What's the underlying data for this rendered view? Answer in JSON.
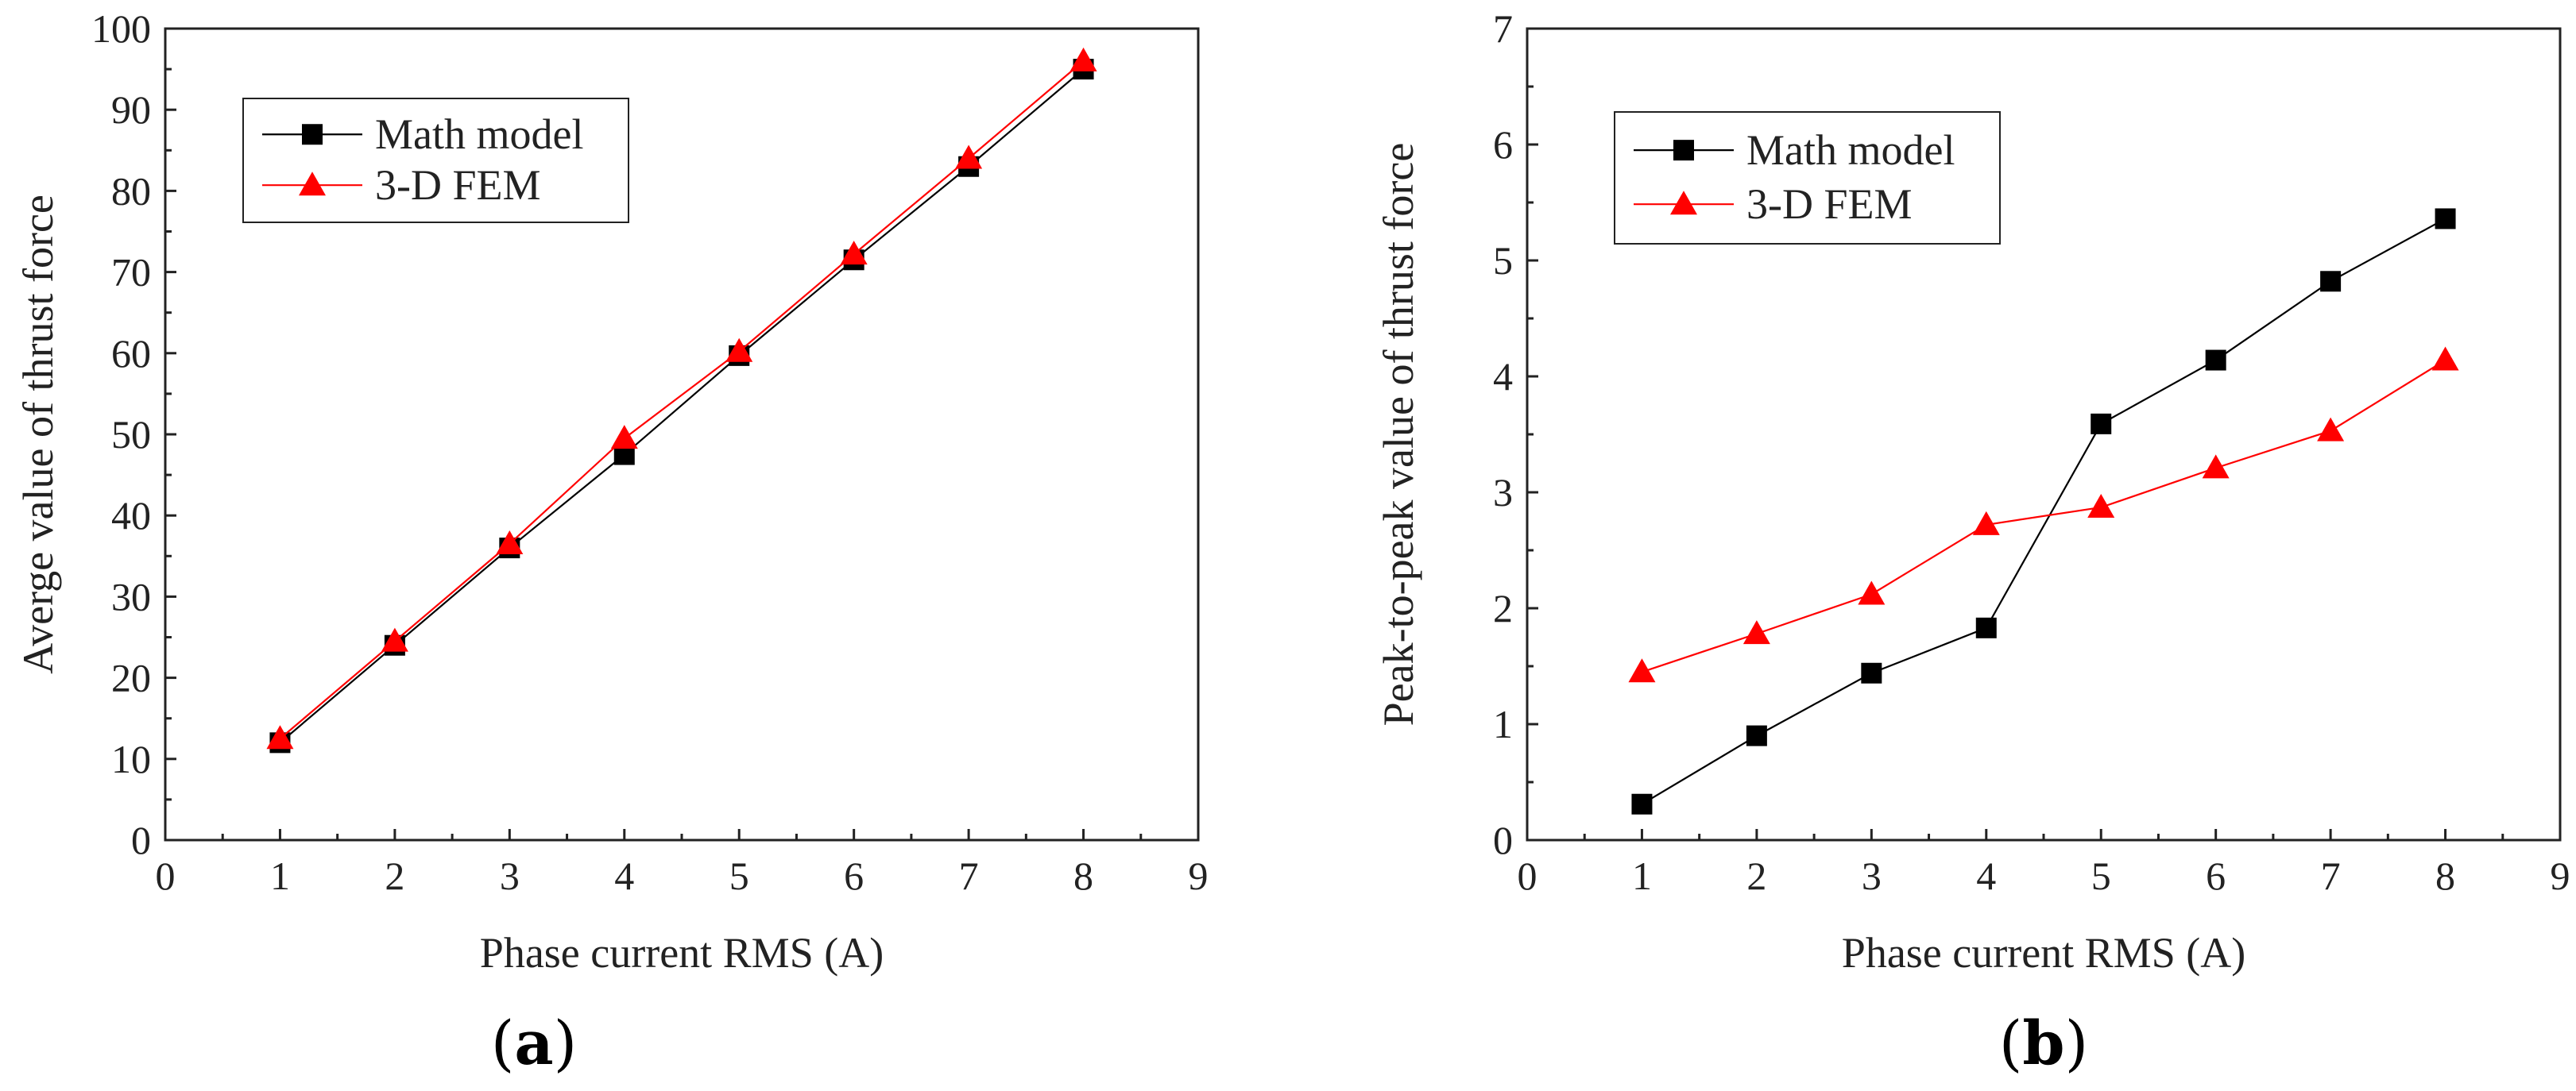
{
  "figure": {
    "panels": [
      {
        "label_open": "(",
        "label_letter": "a",
        "label_close": ")"
      },
      {
        "label_open": "(",
        "label_letter": "b",
        "label_close": ")"
      }
    ]
  },
  "colors": {
    "math_model": "#000000",
    "fem": "#ff0000",
    "axis": "#222222"
  },
  "chart_data": [
    {
      "type": "line",
      "title": "",
      "xlabel": "Phase current RMS (A)",
      "ylabel": "Averge value of thrust force",
      "xlim": [
        0,
        9
      ],
      "ylim": [
        0,
        100
      ],
      "xticks": [
        0,
        1,
        2,
        3,
        4,
        5,
        6,
        7,
        8,
        9
      ],
      "yticks": [
        0,
        10,
        20,
        30,
        40,
        50,
        60,
        70,
        80,
        90,
        100
      ],
      "grid": false,
      "legend_position": "top-left",
      "x": [
        1,
        2,
        3,
        4,
        5,
        6,
        7,
        8
      ],
      "series": [
        {
          "name": "Math model",
          "marker": "square",
          "color": "#000000",
          "values": [
            12,
            24,
            36,
            47.5,
            59.7,
            71.5,
            83,
            95
          ]
        },
        {
          "name": "3-D FEM",
          "marker": "triangle",
          "color": "#ff0000",
          "values": [
            12.5,
            24.5,
            36.5,
            49.5,
            60.2,
            72.2,
            84,
            96
          ]
        }
      ]
    },
    {
      "type": "line",
      "title": "",
      "xlabel": "Phase current RMS (A)",
      "ylabel": "Peak-to-peak value of thrust force",
      "xlim": [
        0,
        9
      ],
      "ylim": [
        0,
        7
      ],
      "xticks": [
        0,
        1,
        2,
        3,
        4,
        5,
        6,
        7,
        8,
        9
      ],
      "yticks": [
        0,
        1,
        2,
        3,
        4,
        5,
        6,
        7
      ],
      "grid": false,
      "legend_position": "top-left",
      "x": [
        1,
        2,
        3,
        4,
        5,
        6,
        7,
        8
      ],
      "series": [
        {
          "name": "Math model",
          "marker": "square",
          "color": "#000000",
          "values": [
            0.31,
            0.9,
            1.44,
            1.83,
            3.59,
            4.14,
            4.82,
            5.36
          ]
        },
        {
          "name": "3-D FEM",
          "marker": "triangle",
          "color": "#ff0000",
          "values": [
            1.45,
            1.78,
            2.12,
            2.72,
            2.87,
            3.21,
            3.53,
            4.14
          ]
        }
      ]
    }
  ]
}
